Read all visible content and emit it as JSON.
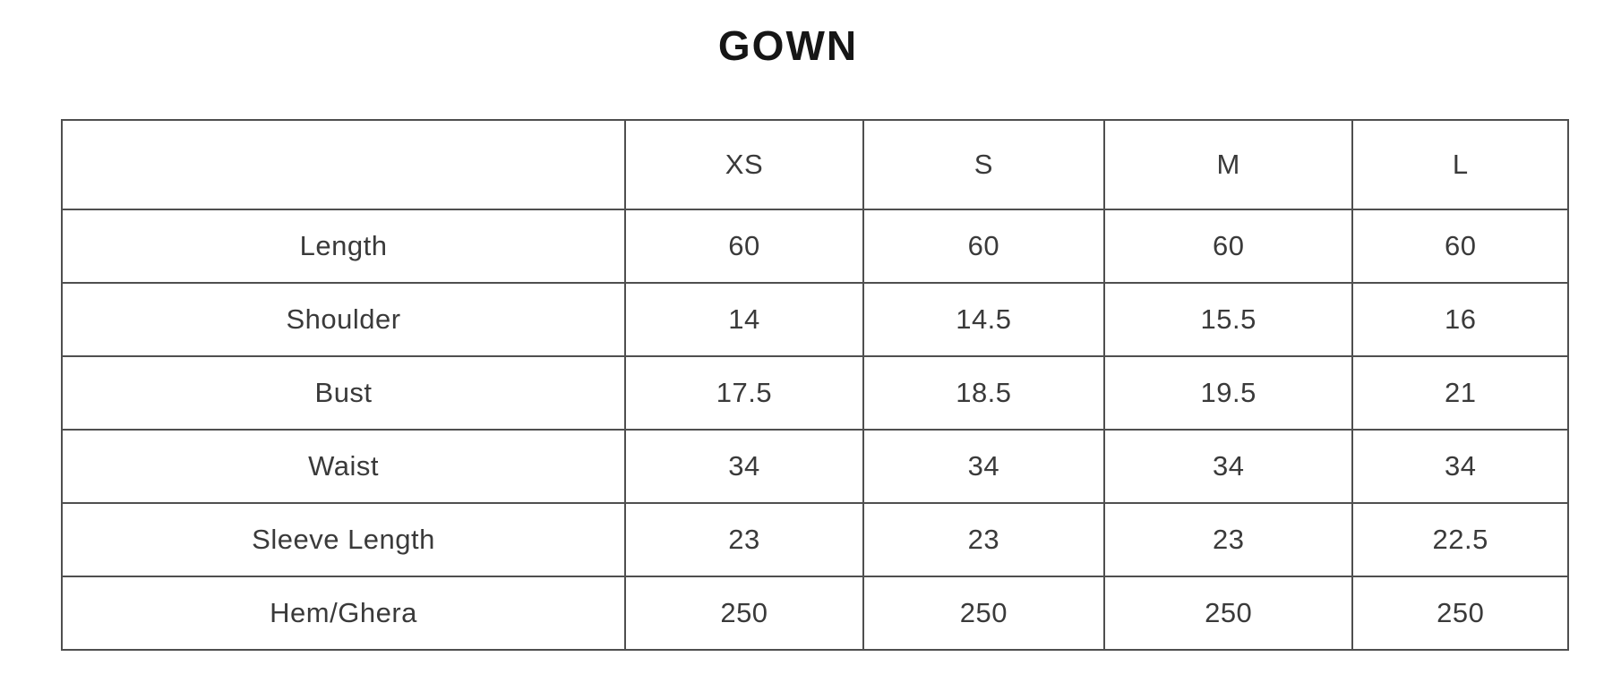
{
  "title": "GOWN",
  "colors": {
    "border": "#4f4f4f",
    "text": "#3a3a3a",
    "title": "#161616",
    "background": "#ffffff"
  },
  "chart_data": {
    "type": "table",
    "title": "GOWN",
    "columns": [
      "",
      "XS",
      "S",
      "M",
      "L"
    ],
    "rows": [
      {
        "label": "Length",
        "values": [
          "60",
          "60",
          "60",
          "60"
        ]
      },
      {
        "label": "Shoulder",
        "values": [
          "14",
          "14.5",
          "15.5",
          "16"
        ]
      },
      {
        "label": "Bust",
        "values": [
          "17.5",
          "18.5",
          "19.5",
          "21"
        ]
      },
      {
        "label": "Waist",
        "values": [
          "34",
          "34",
          "34",
          "34"
        ]
      },
      {
        "label": "Sleeve Length",
        "values": [
          "23",
          "23",
          "23",
          "22.5"
        ]
      },
      {
        "label": "Hem/Ghera",
        "values": [
          "250",
          "250",
          "250",
          "250"
        ]
      }
    ]
  }
}
